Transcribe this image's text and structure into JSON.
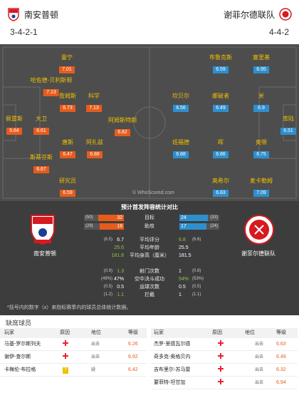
{
  "header": {
    "home": {
      "name": "南安普顿",
      "formation": "3-4-2-1"
    },
    "away": {
      "name": "谢菲尔德联队",
      "formation": "4-4-2"
    }
  },
  "watermark": "© WhoScored.com",
  "players_home": [
    {
      "name": "曼宁",
      "rating": "7.01"
    },
    {
      "name": "哈佐德-贝利斯顿",
      "rating": "7.13"
    },
    {
      "name": "詹姆斯",
      "rating": "6.73"
    },
    {
      "name": "科学",
      "rating": "7.13"
    },
    {
      "name": "佩雷斯",
      "rating": "5.84"
    },
    {
      "name": "大卫",
      "rating": "6.61"
    },
    {
      "name": "阿姆斯特朗",
      "rating": "6.82"
    },
    {
      "name": "唐斯",
      "rating": "6.47"
    },
    {
      "name": "阿扎兹",
      "rating": "6.88"
    },
    {
      "name": "斯蒂芬斯",
      "rating": "6.67"
    },
    {
      "name": "研究员",
      "rating": "6.59"
    }
  ],
  "players_away": [
    {
      "name": "布鲁克斯",
      "rating": "6.59"
    },
    {
      "name": "塞里基",
      "rating": "6.95"
    },
    {
      "name": "坎贝尔",
      "rating": "6.56"
    },
    {
      "name": "娜破者",
      "rating": "6.49"
    },
    {
      "name": "米",
      "rating": "6.9"
    },
    {
      "name": "库陆",
      "rating": "6.51"
    },
    {
      "name": "班福德",
      "rating": "6.88"
    },
    {
      "name": "晖",
      "rating": "6.86"
    },
    {
      "name": "奥顿",
      "rating": "6.75"
    },
    {
      "name": "奥希尔",
      "rating": "6.83"
    },
    {
      "name": "麦卡勒姆",
      "rating": "7.09"
    }
  ],
  "stats": {
    "title": "预计首发阵容统计对比",
    "home_label": "南安普顿",
    "away_label": "谢菲尔德联队",
    "goals": {
      "label": "目标",
      "home": "32",
      "home_cap": "(50)",
      "away": "24",
      "away_cap": "(33)"
    },
    "assists": {
      "label": "助攻",
      "home": "18",
      "home_cap": "(29)",
      "away": "17",
      "away_cap": "(24)"
    },
    "rows": [
      {
        "label": "平均评分",
        "home": "6.7",
        "home_pc": "(6.5)",
        "away": "6.8",
        "away_pc": "(6.6)",
        "away_green": true
      },
      {
        "label": "平均年龄",
        "home": "25.6",
        "home_pc": "",
        "away": "25.5",
        "away_pc": "",
        "home_green": true
      },
      {
        "label": "平均身高（厘米）",
        "home": "181.8",
        "home_pc": "",
        "away": "181.5",
        "away_pc": "",
        "home_green": true
      },
      {
        "label": "射门次数",
        "home": "1.3",
        "home_pc": "(0.9)",
        "away": "1",
        "away_pc": "(0.8)",
        "home_green": true
      },
      {
        "label": "空中决斗成功",
        "home": "47%",
        "home_pc": "(49%)",
        "away": "54%",
        "away_pc": "(53%)",
        "away_green": true
      },
      {
        "label": "运球次数",
        "home": "0.5",
        "home_pc": "(0.5)",
        "away": "0.5",
        "away_pc": "(0.5)"
      },
      {
        "label": "拦截",
        "home": "1.1",
        "home_pc": "(1.2)",
        "away": "1",
        "away_pc": "(1.1)",
        "home_green": true
      }
    ],
    "note": "*括号内的数字（x）来指标赛季内的球员总体统计数据。"
  },
  "missing": {
    "title": "缺席球员",
    "headers": {
      "player": "玩家",
      "reason": "原因",
      "position": "地位",
      "rating": "等级"
    },
    "home": [
      {
        "player": "马基-罗尔斯列夫",
        "reason": "injury",
        "position": "出去",
        "rating": "6.26"
      },
      {
        "player": "谢伊-查尔斯",
        "reason": "injury",
        "position": "出去",
        "rating": "6.92"
      },
      {
        "player": "卡梅伦-布拉格",
        "reason": "doubt",
        "position": "疑",
        "rating": "6.42"
      }
    ],
    "away": [
      {
        "player": "杰罗-里德瓦尔德",
        "reason": "injury",
        "position": "出去",
        "rating": "6.63"
      },
      {
        "player": "奇多克-奥格贝内",
        "reason": "injury",
        "position": "出去",
        "rating": "6.49"
      },
      {
        "player": "吉布里尔-苏马雷",
        "reason": "injury",
        "position": "出去",
        "rating": "6.32"
      },
      {
        "player": "要菲特-坦甘加",
        "reason": "injury",
        "position": "出去",
        "rating": "6.94"
      }
    ]
  },
  "colors": {
    "home_accent": "#e65c1c",
    "away_accent": "#2f8fcd",
    "pitch": "#4d4d4d",
    "stats_bg": "#3d3d3d"
  }
}
